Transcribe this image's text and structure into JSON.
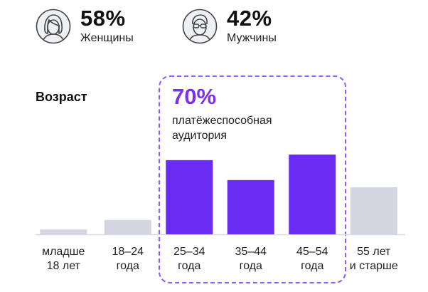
{
  "gender": {
    "female": {
      "percent": "58%",
      "label": "Женщины",
      "icon": "female-avatar-icon"
    },
    "male": {
      "percent": "42%",
      "label": "Мужчины",
      "icon": "male-avatar-icon"
    }
  },
  "highlight": {
    "percent": "70%",
    "line1": "платёжеспособная",
    "line2": "аудитория",
    "border_color": "#8a5cff",
    "text_color": "#7a2ff5"
  },
  "chart_data": {
    "type": "bar",
    "title": "Возраст",
    "categories": [
      [
        "младше",
        "18 лет"
      ],
      [
        "18–24",
        "года"
      ],
      [
        "25–34",
        "года"
      ],
      [
        "35–44",
        "года"
      ],
      [
        "45–54",
        "года"
      ],
      [
        "55 лет",
        "и старше"
      ]
    ],
    "values": [
      6,
      18,
      93,
      68,
      100,
      59
    ],
    "highlighted": [
      false,
      false,
      true,
      true,
      true,
      false
    ],
    "colors": {
      "highlight": "#6a2cf2",
      "muted": "#d3d6e0",
      "baseline": "#d9dbe2"
    },
    "ylim": [
      0,
      100
    ],
    "grid": false,
    "legend": "none"
  }
}
